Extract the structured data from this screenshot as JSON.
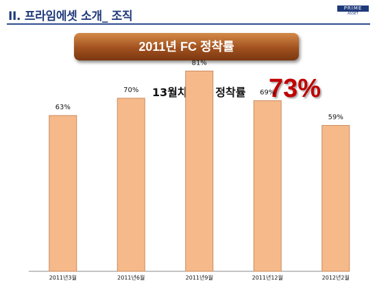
{
  "header": {
    "title": "II. 프라임에셋 소개_ 조직",
    "logo_mark": "PRIME",
    "logo_sub": "ASSET"
  },
  "banner": {
    "title": "2011년 FC 정착률"
  },
  "summary": {
    "label": "13월차  평균 정착률",
    "value": "73%"
  },
  "colors": {
    "bar": "#f6b98a",
    "bar_edge": "#c98a5e",
    "accent": "#c00000",
    "brand": "#1f3a7a"
  },
  "chart_data": {
    "type": "bar",
    "title": "2011년 FC 정착률",
    "categories": [
      "2011년3월",
      "2011년6월",
      "2011년9월",
      "2011년12월",
      "2012년2월"
    ],
    "values": [
      63,
      70,
      81,
      69,
      59
    ],
    "value_labels": [
      "63%",
      "70%",
      "81%",
      "69%",
      "59%"
    ],
    "ylim": [
      0,
      90
    ],
    "grid": false,
    "legend": "none"
  }
}
